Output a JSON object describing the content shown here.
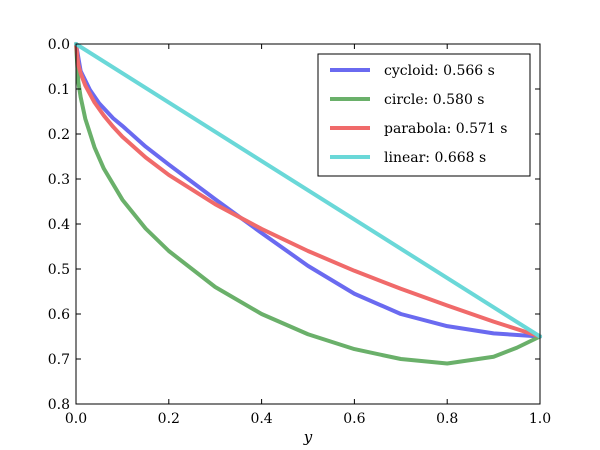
{
  "chart_data": {
    "type": "line",
    "title": "",
    "xlabel": "y",
    "ylabel": "",
    "xlim": [
      0.0,
      1.0
    ],
    "ylim": [
      0.8,
      0.0
    ],
    "y_inverted": true,
    "grid": false,
    "legend_position": "top-right",
    "xticks": [
      "0.0",
      "0.2",
      "0.4",
      "0.6",
      "0.8",
      "1.0"
    ],
    "yticks": [
      "0.0",
      "0.1",
      "0.2",
      "0.3",
      "0.4",
      "0.5",
      "0.6",
      "0.7",
      "0.8"
    ],
    "series": [
      {
        "name": "cycloid: 0.566 s",
        "color": "#6a6af0",
        "x": [
          0.0,
          0.01,
          0.03,
          0.05,
          0.08,
          0.1,
          0.15,
          0.2,
          0.3,
          0.4,
          0.5,
          0.6,
          0.7,
          0.8,
          0.9,
          1.0
        ],
        "y": [
          0.0,
          0.06,
          0.102,
          0.132,
          0.165,
          0.182,
          0.228,
          0.268,
          0.345,
          0.42,
          0.493,
          0.555,
          0.6,
          0.627,
          0.643,
          0.65
        ]
      },
      {
        "name": "circle: 0.580 s",
        "color": "#6ab06a",
        "x": [
          0.0,
          0.005,
          0.01,
          0.02,
          0.04,
          0.06,
          0.1,
          0.15,
          0.2,
          0.3,
          0.4,
          0.5,
          0.6,
          0.7,
          0.8,
          0.9,
          0.95,
          1.0
        ],
        "y": [
          0.0,
          0.084,
          0.118,
          0.166,
          0.23,
          0.277,
          0.346,
          0.41,
          0.46,
          0.54,
          0.6,
          0.645,
          0.678,
          0.7,
          0.71,
          0.695,
          0.675,
          0.65
        ]
      },
      {
        "name": "parabola: 0.571 s",
        "color": "#f06a6a",
        "x": [
          0.0,
          0.005,
          0.01,
          0.02,
          0.04,
          0.06,
          0.08,
          0.1,
          0.15,
          0.2,
          0.3,
          0.4,
          0.5,
          0.6,
          0.7,
          0.8,
          0.9,
          1.0
        ],
        "y": [
          0.0,
          0.046,
          0.065,
          0.092,
          0.13,
          0.159,
          0.184,
          0.206,
          0.252,
          0.291,
          0.356,
          0.411,
          0.46,
          0.504,
          0.544,
          0.581,
          0.617,
          0.65
        ]
      },
      {
        "name": "linear: 0.668 s",
        "color": "#6ad8d8",
        "x": [
          0.0,
          1.0
        ],
        "y": [
          0.0,
          0.65
        ]
      }
    ]
  }
}
